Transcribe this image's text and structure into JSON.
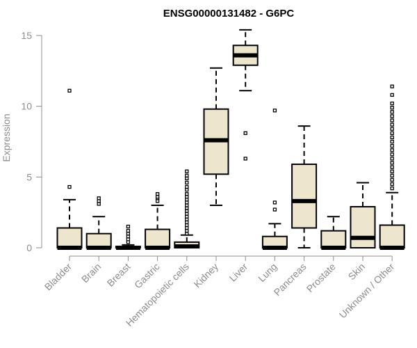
{
  "chart_data": {
    "type": "boxplot",
    "title": "ENSG00000131482 - G6PC",
    "ylabel": "Expression",
    "xlabel": "",
    "ylim": [
      0,
      15
    ],
    "yticks": [
      0,
      5,
      10,
      15
    ],
    "grid": false,
    "box_fill": "#ede5cc",
    "categories": [
      "Bladder",
      "Brain",
      "Breast",
      "Gastric",
      "Hematopoietic cells",
      "Kidney",
      "Liver",
      "Lung",
      "Pancreas",
      "Prostate",
      "Skin",
      "Unknown / Other"
    ],
    "boxes": [
      {
        "category": "Bladder",
        "whisker_low": 0,
        "q1": 0,
        "median": 0,
        "q3": 1.4,
        "whisker_high": 3.4,
        "outliers": [
          4.3,
          11.1
        ]
      },
      {
        "category": "Brain",
        "whisker_low": 0,
        "q1": 0,
        "median": 0,
        "q3": 1.0,
        "whisker_high": 2.2,
        "outliers": [
          3.1,
          3.3,
          3.5
        ]
      },
      {
        "category": "Breast",
        "whisker_low": 0,
        "q1": 0,
        "median": 0,
        "q3": 0.1,
        "whisker_high": 0.2,
        "outliers": [
          0.4,
          0.6,
          0.8,
          1.0,
          1.2,
          1.5
        ]
      },
      {
        "category": "Gastric",
        "whisker_low": 0,
        "q1": 0,
        "median": 0,
        "q3": 1.3,
        "whisker_high": 3.0,
        "outliers": [
          3.3,
          3.5,
          3.6,
          3.8
        ]
      },
      {
        "category": "Hematopoietic cells",
        "whisker_low": 0,
        "q1": 0,
        "median": 0.1,
        "q3": 0.4,
        "whisker_high": 0.9,
        "outliers": [
          1.0,
          1.2,
          1.4,
          1.6,
          1.8,
          2.0,
          2.2,
          2.4,
          2.6,
          2.8,
          3.0,
          3.2,
          3.4,
          3.6,
          3.8,
          4.1,
          4.3,
          4.6,
          4.9,
          5.1,
          5.4
        ]
      },
      {
        "category": "Kidney",
        "whisker_low": 3.0,
        "q1": 5.2,
        "median": 7.6,
        "q3": 9.8,
        "whisker_high": 12.7,
        "outliers": []
      },
      {
        "category": "Liver",
        "whisker_low": 11.1,
        "q1": 12.9,
        "median": 13.6,
        "q3": 14.3,
        "whisker_high": 15.4,
        "outliers": [
          6.3,
          8.1
        ]
      },
      {
        "category": "Lung",
        "whisker_low": 0,
        "q1": 0,
        "median": 0,
        "q3": 0.8,
        "whisker_high": 1.7,
        "outliers": [
          2.7,
          3.2,
          9.7
        ]
      },
      {
        "category": "Pancreas",
        "whisker_low": 0,
        "q1": 1.4,
        "median": 3.3,
        "q3": 5.9,
        "whisker_high": 8.6,
        "outliers": []
      },
      {
        "category": "Prostate",
        "whisker_low": 0,
        "q1": 0,
        "median": 0,
        "q3": 1.2,
        "whisker_high": 2.2,
        "outliers": []
      },
      {
        "category": "Skin",
        "whisker_low": 0,
        "q1": 0,
        "median": 0.7,
        "q3": 2.9,
        "whisker_high": 4.6,
        "outliers": []
      },
      {
        "category": "Unknown / Other",
        "whisker_low": 0,
        "q1": 0,
        "median": 0,
        "q3": 1.6,
        "whisker_high": 3.9,
        "outliers": [
          4.2,
          4.5,
          4.8,
          5.1,
          5.4,
          5.7,
          6.0,
          6.3,
          6.6,
          6.9,
          7.2,
          7.5,
          7.8,
          8.1,
          8.4,
          8.7,
          9.0,
          9.3,
          9.6,
          9.9,
          10.2,
          10.8,
          11.4
        ]
      }
    ]
  }
}
